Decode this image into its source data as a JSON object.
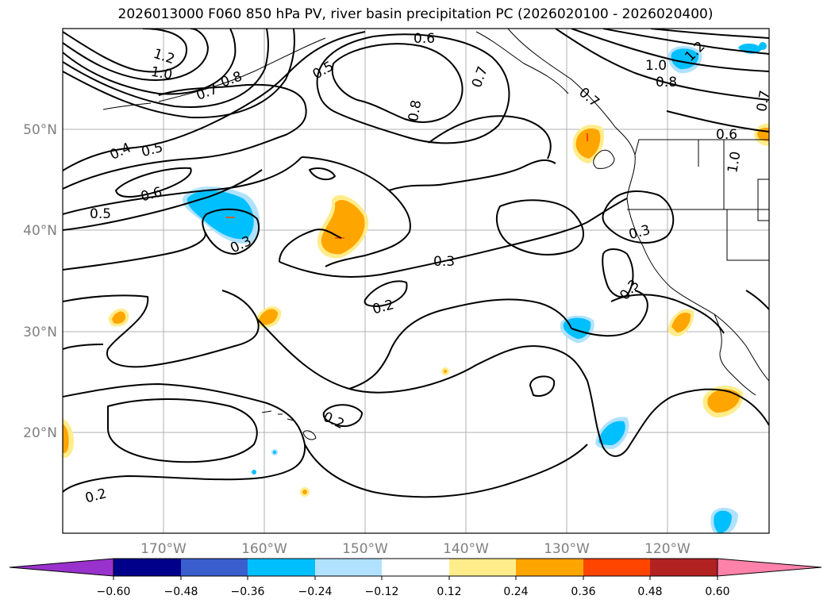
{
  "title": "2026013000 F060 850 hPa PV, river basin precipitation PC (2026020100 - 2026020400)",
  "map": {
    "lon_labels": [
      "170°W",
      "160°W",
      "150°W",
      "140°W",
      "130°W",
      "120°W"
    ],
    "lat_labels": [
      "50°N",
      "40°N",
      "30°N",
      "20°N"
    ],
    "contour_labels": [
      {
        "text": "1.2"
      },
      {
        "text": "1.0"
      },
      {
        "text": "0.8"
      },
      {
        "text": "0.7"
      },
      {
        "text": "0.5"
      },
      {
        "text": "0.6"
      },
      {
        "text": "0.7"
      },
      {
        "text": "0.8"
      },
      {
        "text": "0.4"
      },
      {
        "text": "0.5"
      },
      {
        "text": "0.6"
      },
      {
        "text": "0.5"
      },
      {
        "text": "0.3"
      },
      {
        "text": "0.3"
      },
      {
        "text": "0.2"
      },
      {
        "text": "0.2"
      },
      {
        "text": "0.2"
      },
      {
        "text": "1.2"
      },
      {
        "text": "1.0"
      },
      {
        "text": "0.8"
      },
      {
        "text": "0.6"
      },
      {
        "text": "0.7"
      },
      {
        "text": "0.3"
      },
      {
        "text": "0.3"
      },
      {
        "text": "1.0"
      },
      {
        "text": "0.7"
      }
    ]
  },
  "colorbar": {
    "labels": [
      "−0.60",
      "−0.48",
      "−0.36",
      "−0.24",
      "−0.12",
      "0.12",
      "0.24",
      "0.36",
      "0.48",
      "0.60"
    ],
    "colors": [
      "#9932cc",
      "#00008b",
      "#3a5fcd",
      "#00bfff",
      "#b0e2ff",
      "#ffffff",
      "#ffec8b",
      "#ffa500",
      "#ff4500",
      "#b22222",
      "#ff82ab"
    ]
  }
}
